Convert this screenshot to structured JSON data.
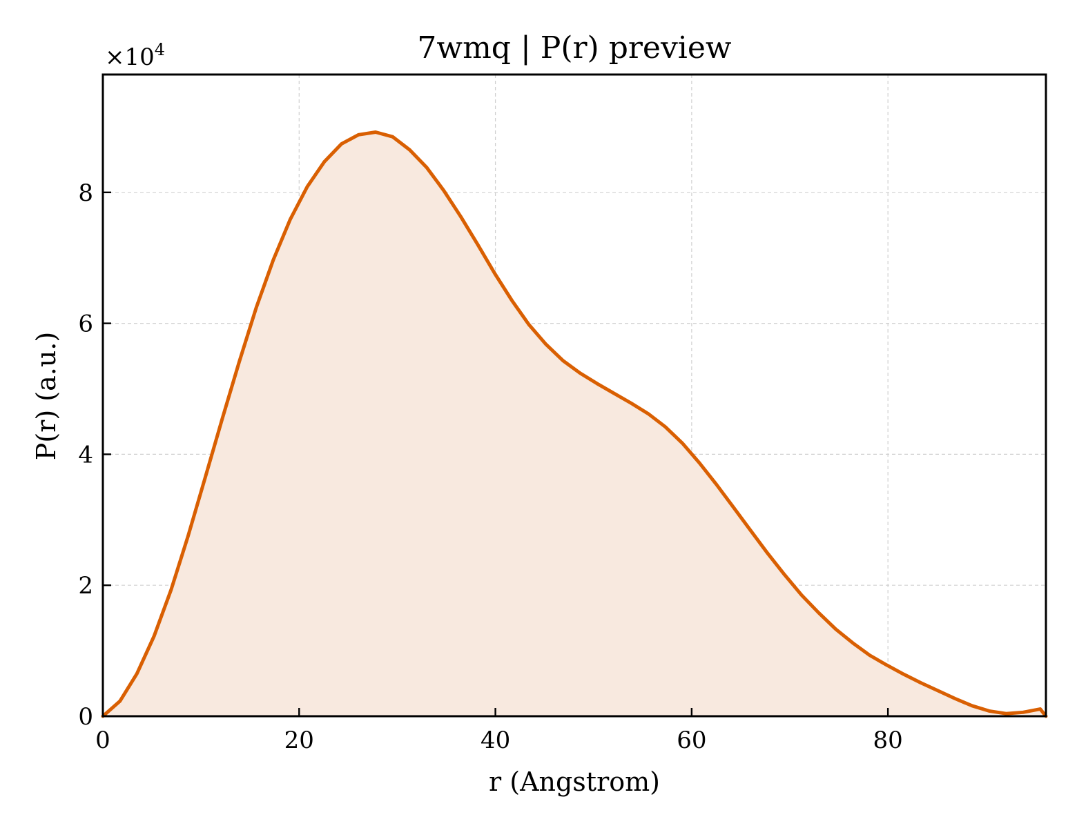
{
  "chart_data": {
    "type": "area",
    "title": "7wmq | P(r) preview",
    "xlabel": "r (Angstrom)",
    "ylabel": "P(r) (a.u.)",
    "y_multiplier_text": "×10",
    "y_multiplier_exponent": "4",
    "xlim": [
      0,
      96.1
    ],
    "ylim": [
      0,
      98000
    ],
    "x_ticks": [
      0,
      20,
      40,
      60,
      80
    ],
    "x_tick_labels": [
      "0",
      "20",
      "40",
      "60",
      "80"
    ],
    "y_ticks": [
      0,
      20000,
      40000,
      60000,
      80000
    ],
    "y_tick_labels": [
      "0",
      "2",
      "4",
      "6",
      "8"
    ],
    "grid": true,
    "colors": {
      "line": "#d95f02",
      "fill": "#f8e9df"
    },
    "series": [
      {
        "x": [
          0,
          1.74,
          3.47,
          5.21,
          6.95,
          8.68,
          10.42,
          12.16,
          13.89,
          15.63,
          17.37,
          19.1,
          20.84,
          22.58,
          24.31,
          26.05,
          27.79,
          29.52,
          31.26,
          33.0,
          34.73,
          36.47,
          38.21,
          39.94,
          41.68,
          43.42,
          45.15,
          46.89,
          48.63,
          50.36,
          52.1,
          53.84,
          55.57,
          57.31,
          59.05,
          60.78,
          62.52,
          64.26,
          65.99,
          67.73,
          69.47,
          71.2,
          72.94,
          74.68,
          76.41,
          78.15,
          79.89,
          81.62,
          83.36,
          85.1,
          86.83,
          88.57,
          90.31,
          92.04,
          93.78,
          95.52,
          96.1
        ],
        "y": [
          0,
          2300,
          6500,
          12200,
          19300,
          27500,
          36400,
          45400,
          54100,
          62400,
          69700,
          75900,
          80900,
          84700,
          87400,
          88800,
          89200,
          88500,
          86500,
          83800,
          80300,
          76300,
          72000,
          67600,
          63500,
          59800,
          56800,
          54300,
          52400,
          50800,
          49300,
          47800,
          46200,
          44200,
          41700,
          38700,
          35400,
          31900,
          28400,
          24900,
          21600,
          18500,
          15800,
          13300,
          11200,
          9300,
          7800,
          6400,
          5100,
          3900,
          2700,
          1600,
          800,
          400,
          600,
          1100,
          0
        ]
      }
    ]
  }
}
